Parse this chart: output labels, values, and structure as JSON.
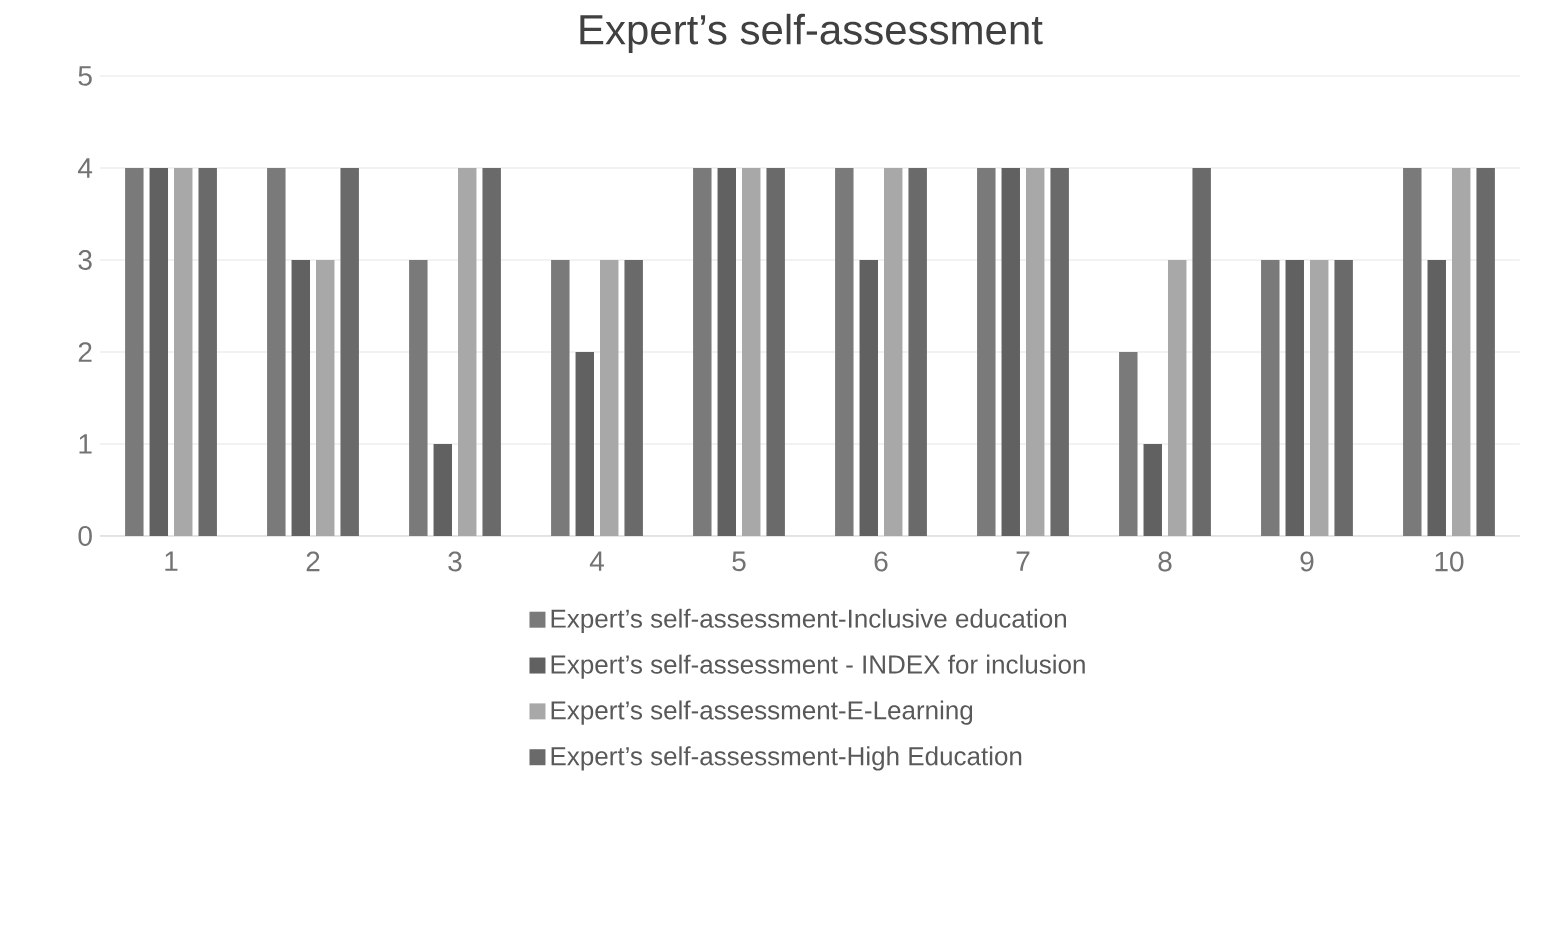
{
  "chart_data": {
    "type": "bar",
    "title": "Expert’s self-assessment",
    "categories": [
      "1",
      "2",
      "3",
      "4",
      "5",
      "6",
      "7",
      "8",
      "9",
      "10"
    ],
    "series": [
      {
        "name": "Expert’s self-assessment-Inclusive education",
        "color": "#7a7a7a",
        "values": [
          4,
          4,
          3,
          3,
          4,
          4,
          4,
          2,
          3,
          4
        ]
      },
      {
        "name": "Expert’s self-assessment - INDEX for inclusion",
        "color": "#616161",
        "values": [
          4,
          3,
          1,
          2,
          4,
          3,
          4,
          1,
          3,
          3
        ]
      },
      {
        "name": "Expert’s self-assessment-E-Learning",
        "color": "#a8a8a8",
        "values": [
          4,
          3,
          4,
          3,
          4,
          4,
          4,
          3,
          3,
          4
        ]
      },
      {
        "name": "Expert’s self-assessment-High Education",
        "color": "#6a6a6a",
        "values": [
          4,
          4,
          4,
          3,
          4,
          4,
          4,
          4,
          3,
          4
        ]
      }
    ],
    "ylim": [
      0,
      5
    ],
    "yticks": [
      0,
      1,
      2,
      3,
      4,
      5
    ],
    "grid": "y",
    "legend": "bottom"
  }
}
